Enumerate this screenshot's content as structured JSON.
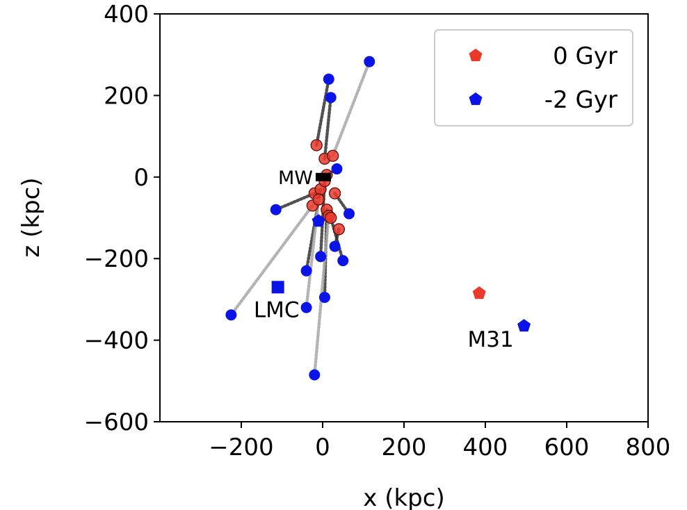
{
  "chart_data": {
    "type": "scatter",
    "title": "",
    "xlabel": "x (kpc)",
    "ylabel": "z (kpc)",
    "xlim": [
      -400,
      800
    ],
    "ylim": [
      -600,
      400
    ],
    "xticks": [
      -200,
      0,
      200,
      400,
      600,
      800
    ],
    "xtick_labels": [
      "−200",
      "0",
      "200",
      "400",
      "600",
      "800"
    ],
    "yticks": [
      400,
      200,
      0,
      -200,
      -400,
      -600
    ],
    "ytick_labels": [
      "400",
      "200",
      "0",
      "−200",
      "−400",
      "−600"
    ],
    "grid": false,
    "legend_position": "top-right",
    "series": [
      {
        "name": "0 Gyr",
        "marker": "pentagon",
        "color": "#e8392b"
      },
      {
        "name": "-2 Gyr",
        "marker": "pentagon",
        "color": "#0a14e6"
      }
    ],
    "orbits": [
      {
        "start": [
          -15,
          78
        ],
        "end": [
          15,
          240
        ]
      },
      {
        "start": [
          5,
          45
        ],
        "end": [
          20,
          195
        ]
      },
      {
        "start": [
          25,
          52
        ],
        "end": [
          115,
          283
        ]
      },
      {
        "start": [
          10,
          5
        ],
        "end": [
          35,
          20
        ]
      },
      {
        "start": [
          -20,
          -40
        ],
        "end": [
          -115,
          -80
        ]
      },
      {
        "start": [
          -25,
          -70
        ],
        "end": [
          -225,
          -338
        ]
      },
      {
        "start": [
          -5,
          -30
        ],
        "end": [
          -40,
          -230
        ]
      },
      {
        "start": [
          -10,
          -55
        ],
        "end": [
          -40,
          -320
        ]
      },
      {
        "start": [
          5,
          -10
        ],
        "end": [
          -5,
          -195
        ]
      },
      {
        "start": [
          10,
          -80
        ],
        "end": [
          5,
          -295
        ]
      },
      {
        "start": [
          15,
          -95
        ],
        "end": [
          -20,
          -485
        ]
      },
      {
        "start": [
          30,
          -40
        ],
        "end": [
          65,
          -90
        ]
      },
      {
        "start": [
          20,
          -100
        ],
        "end": [
          50,
          -205
        ]
      },
      {
        "start": [
          40,
          -128
        ],
        "end": [
          30,
          -170
        ]
      }
    ],
    "milky_way": {
      "label": "MW",
      "x": 0,
      "y": 0
    },
    "lmc": {
      "label": "LMC",
      "x": -110,
      "y": -270
    },
    "m31": {
      "label": "M31",
      "now": [
        385,
        -285
      ],
      "past": [
        495,
        -365
      ]
    },
    "mw_past": [
      -10,
      -108
    ]
  }
}
